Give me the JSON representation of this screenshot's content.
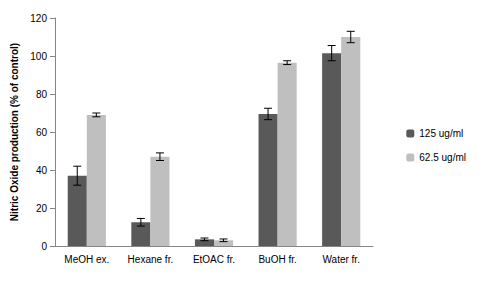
{
  "chart_data": {
    "type": "bar",
    "y_label": "Nitric Oxide production (% of control)",
    "categories": [
      "MeOH ex.",
      "Hexane fr.",
      "EtOAC fr.",
      "BuOH fr.",
      "Water fr."
    ],
    "series": [
      {
        "name": "125 ug/ml",
        "color": "#595959",
        "values": [
          37,
          12.5,
          3.5,
          69.5,
          101.5
        ],
        "errors": [
          5,
          2,
          0.7,
          3,
          4
        ]
      },
      {
        "name": "62.5 ug/ml",
        "color": "#bfbfbf",
        "values": [
          69,
          47,
          3,
          96.5,
          110
        ],
        "errors": [
          1,
          2,
          0.7,
          1,
          3
        ]
      }
    ],
    "ylim": [
      0,
      120
    ],
    "yticks": [
      0,
      20,
      40,
      60,
      80,
      100,
      120
    ],
    "grid": false,
    "legend": "right"
  }
}
